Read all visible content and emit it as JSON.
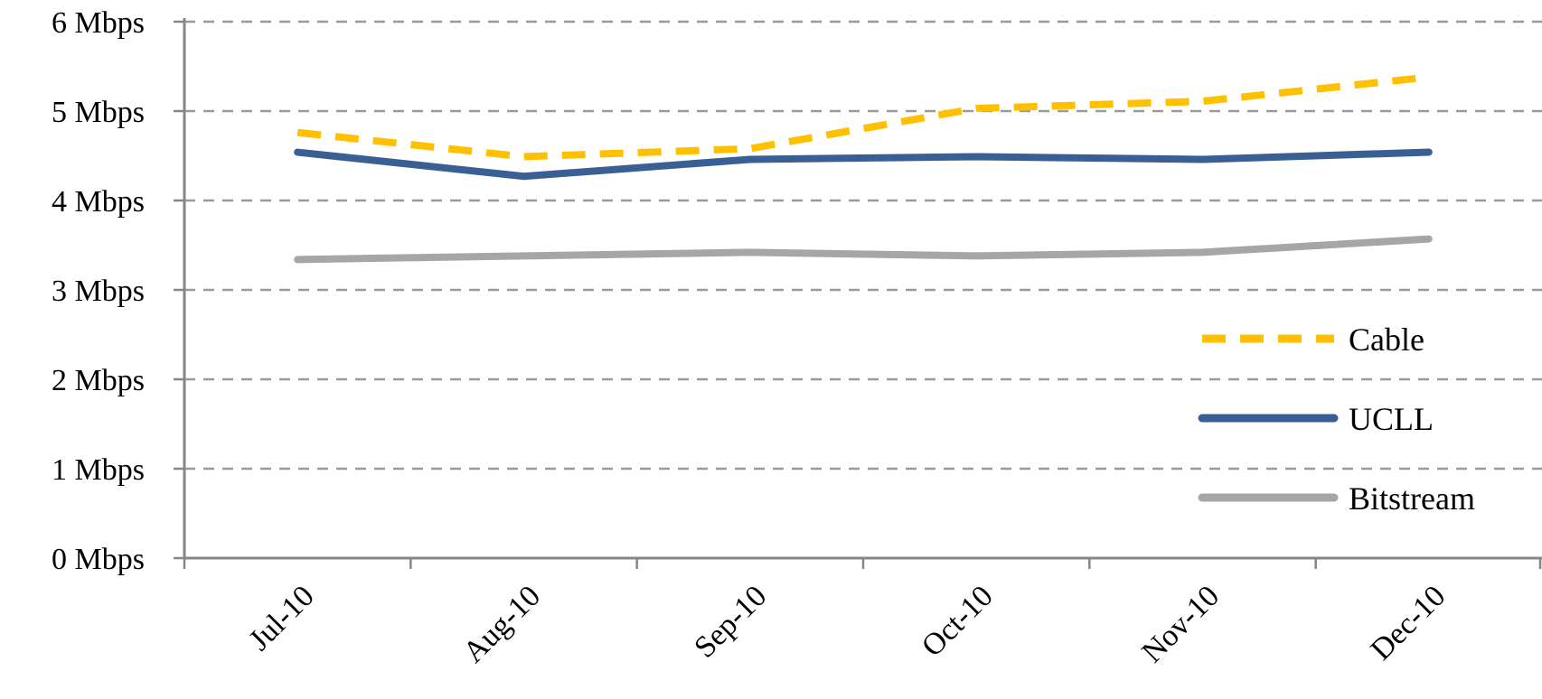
{
  "chart_data": {
    "type": "line",
    "title": "",
    "xlabel": "",
    "ylabel": "",
    "categories": [
      "Jul-10",
      "Aug-10",
      "Sep-10",
      "Oct-10",
      "Nov-10",
      "Dec-10"
    ],
    "ylim": [
      0,
      6
    ],
    "y_ticks": [
      0,
      1,
      2,
      3,
      4,
      5,
      6
    ],
    "y_tick_labels": [
      "0 Mbps",
      "1 Mbps",
      "2 Mbps",
      "3 Mbps",
      "4 Mbps",
      "5 Mbps",
      "6 Mbps"
    ],
    "grid": "horizontal dashed",
    "legend_position": "right",
    "series": [
      {
        "name": "Cable",
        "values": [
          4.76,
          4.49,
          4.58,
          5.03,
          5.11,
          5.38
        ],
        "color": "#FFC000",
        "style": "dashed"
      },
      {
        "name": "UCLL",
        "values": [
          4.54,
          4.27,
          4.46,
          4.49,
          4.46,
          4.54
        ],
        "color": "#3A5F94",
        "style": "solid"
      },
      {
        "name": "Bitstream",
        "values": [
          3.34,
          3.38,
          3.42,
          3.38,
          3.42,
          3.57
        ],
        "color": "#A6A6A6",
        "style": "solid"
      }
    ]
  }
}
